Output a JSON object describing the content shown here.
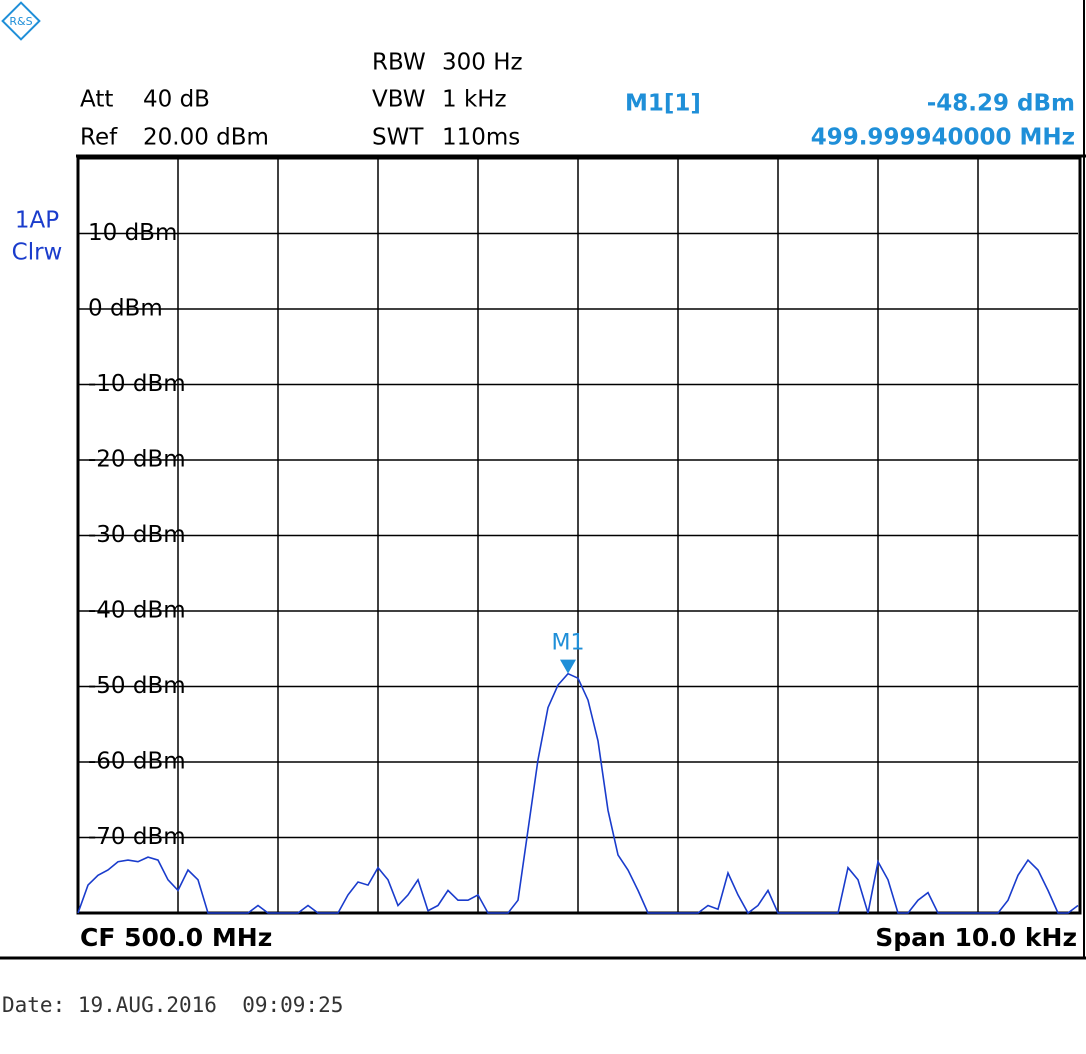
{
  "header": {
    "att_label": "Att",
    "att": "40 dB",
    "ref_label": "Ref",
    "ref": "20.00 dBm",
    "rbw_label": "RBW",
    "rbw": "300 Hz",
    "vbw_label": "VBW",
    "vbw": "1 kHz",
    "swt_label": "SWT",
    "swt": "110ms",
    "marker_name": "M1[1]",
    "marker_level": "-48.29 dBm",
    "marker_frequency": "499.999940000 MHz"
  },
  "trace_info": [
    "1AP",
    "Clrw"
  ],
  "chart_data": {
    "type": "line",
    "color": "#1a3ccc",
    "marker_label": "M1",
    "grid": true,
    "ylim": [
      -80,
      20
    ],
    "yticks": [
      {
        "value": 10,
        "label": "10 dBm"
      },
      {
        "value": 0,
        "label": "0 dBm"
      },
      {
        "value": -10,
        "label": "-10 dBm"
      },
      {
        "value": -20,
        "label": "-20 dBm"
      },
      {
        "value": -30,
        "label": "-30 dBm"
      },
      {
        "value": -40,
        "label": "-40 dBm"
      },
      {
        "value": -50,
        "label": "-50 dBm"
      },
      {
        "value": -60,
        "label": "-60 dBm"
      },
      {
        "value": -70,
        "label": "-70 dBm"
      }
    ],
    "values": [
      -80,
      -76.3,
      -75,
      -74.3,
      -73.2,
      -73,
      -73.2,
      -72.6,
      -73,
      -75.6,
      -77,
      -74.3,
      -75.6,
      -80,
      -80,
      -80,
      -80,
      -80,
      -79,
      -80,
      -80,
      -80,
      -80,
      -79,
      -80,
      -80,
      -80,
      -77.6,
      -75.9,
      -76.3,
      -74,
      -75.6,
      -79,
      -77.6,
      -75.6,
      -79.7,
      -79,
      -77,
      -78.3,
      -78.3,
      -77.6,
      -80,
      -80,
      -80,
      -78.3,
      -69,
      -59.7,
      -52.8,
      -49.8,
      -48.3,
      -48.9,
      -51.8,
      -57.2,
      -66.4,
      -72.3,
      -74.3,
      -77,
      -80,
      -80,
      -80,
      -80,
      -80,
      -80,
      -79,
      -79.5,
      -74.7,
      -77.6,
      -80,
      -79,
      -77,
      -80,
      -80,
      -80,
      -80,
      -80,
      -80,
      -80,
      -74,
      -75.6,
      -80,
      -73.2,
      -75.6,
      -80,
      -80,
      -78.3,
      -77.3,
      -80,
      -80,
      -80,
      -80,
      -80,
      -80,
      -80,
      -78.3,
      -75,
      -73,
      -74.3,
      -77,
      -80,
      -80,
      -79
    ]
  },
  "footer": {
    "center": "CF 500.0 MHz",
    "span": "Span 10.0 kHz",
    "date": "Date: 19.AUG.2016  09:09:25"
  }
}
